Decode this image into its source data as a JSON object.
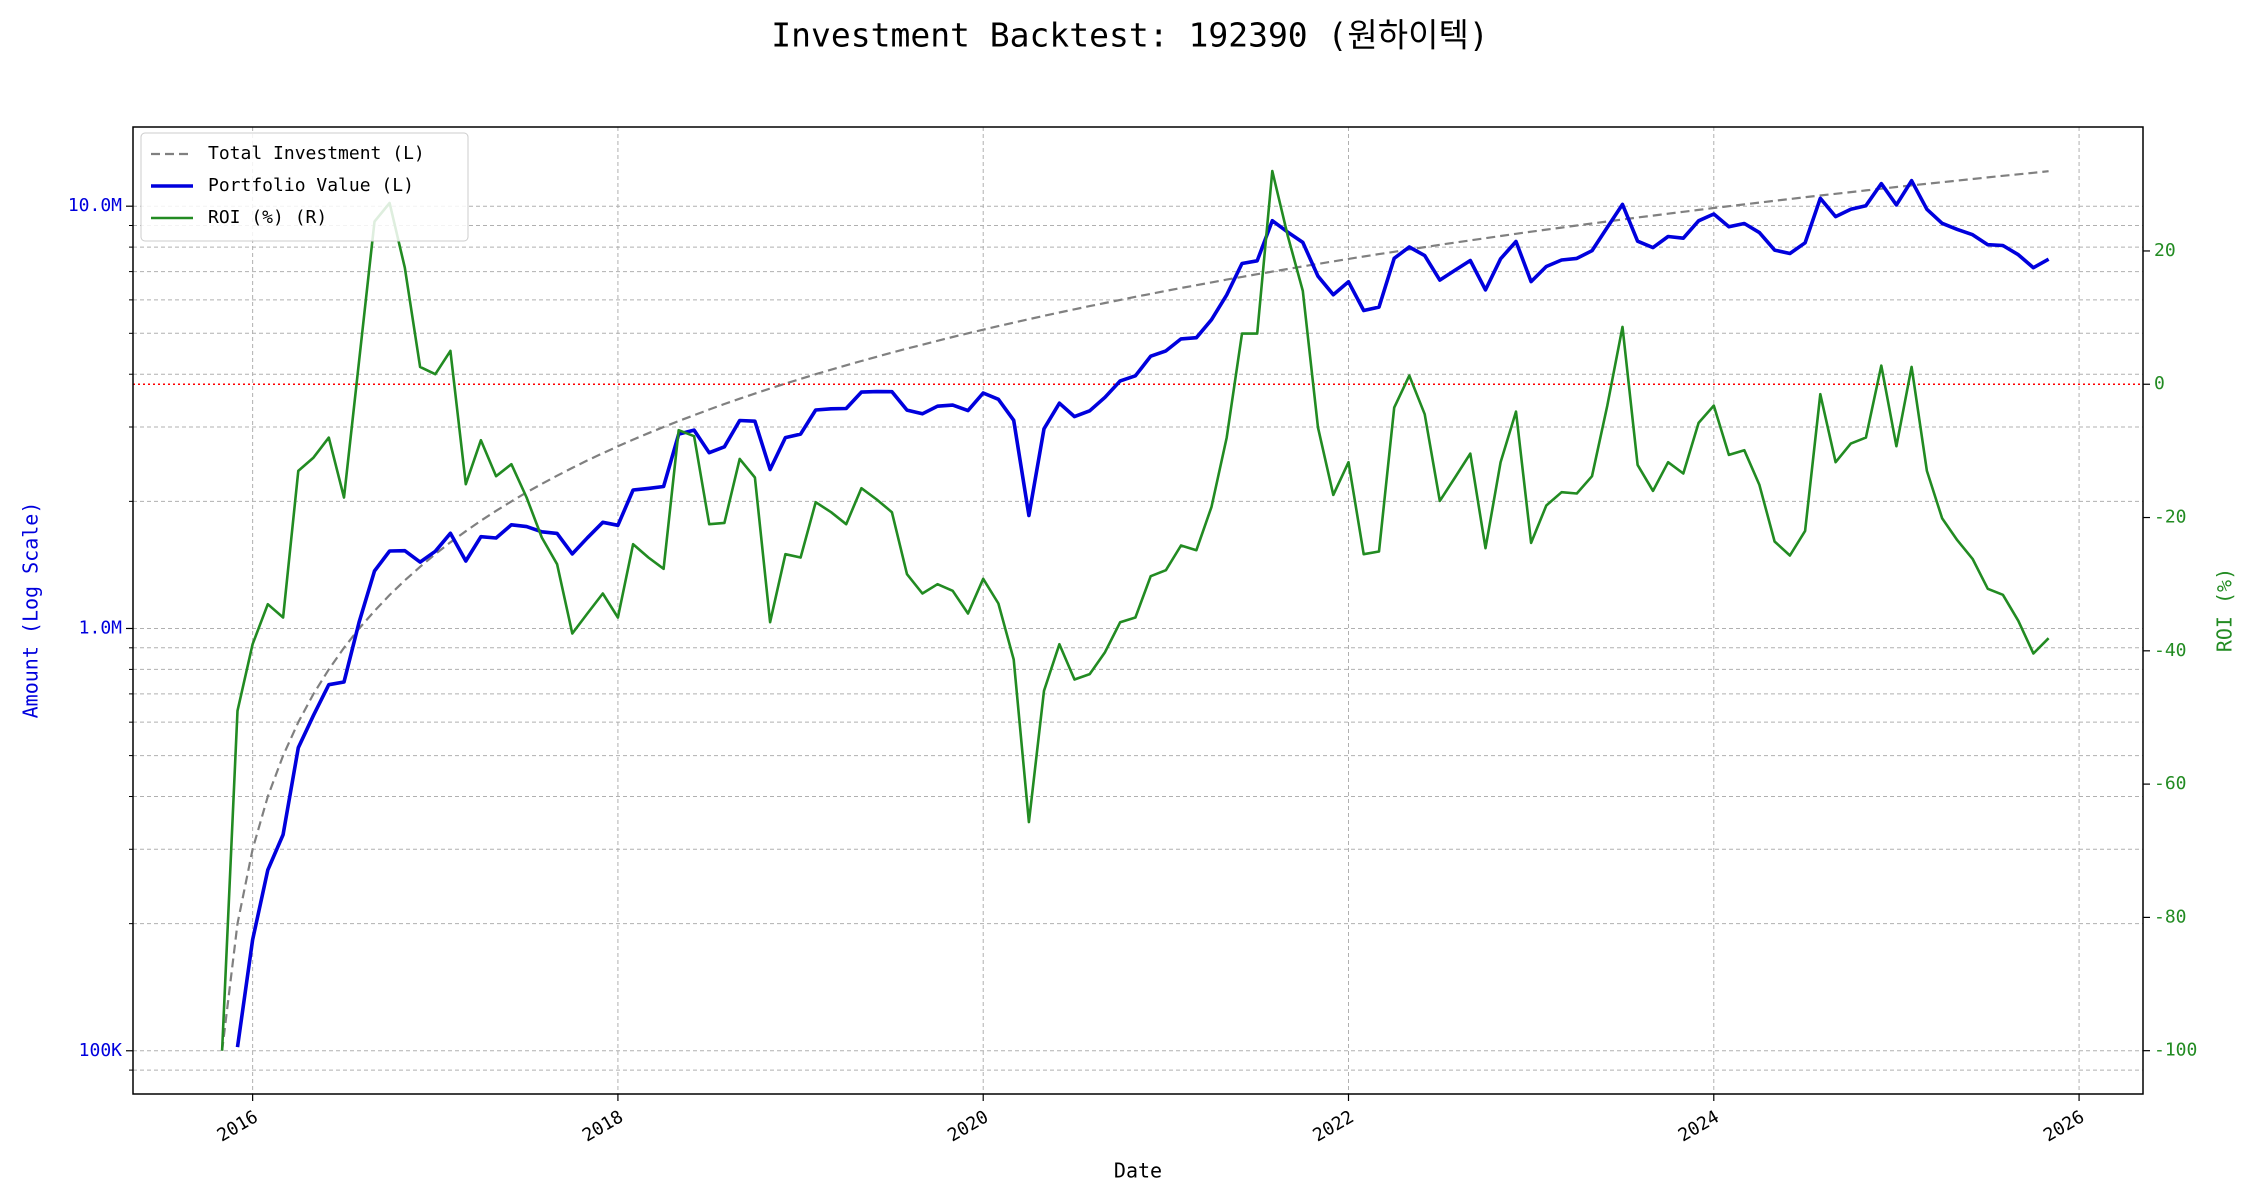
{
  "chart_data": {
    "type": "line",
    "title": "Investment Backtest: 192390 (원하이텍)",
    "xlabel": "Date",
    "ylabel": "Amount (Log Scale)",
    "y2label": "ROI (%)",
    "x": [
      2015.833,
      2015.917,
      2016,
      2016.083,
      2016.167,
      2016.25,
      2016.333,
      2016.417,
      2016.5,
      2016.583,
      2016.667,
      2016.75,
      2016.833,
      2016.917,
      2017,
      2017.083,
      2017.167,
      2017.25,
      2017.333,
      2017.417,
      2017.5,
      2017.583,
      2017.667,
      2017.75,
      2017.833,
      2017.917,
      2018,
      2018.083,
      2018.167,
      2018.25,
      2018.333,
      2018.417,
      2018.5,
      2018.583,
      2018.667,
      2018.75,
      2018.833,
      2018.917,
      2019,
      2019.083,
      2019.167,
      2019.25,
      2019.333,
      2019.417,
      2019.5,
      2019.583,
      2019.667,
      2019.75,
      2019.833,
      2019.917,
      2020,
      2020.083,
      2020.167,
      2020.25,
      2020.333,
      2020.417,
      2020.5,
      2020.583,
      2020.667,
      2020.75,
      2020.833,
      2020.917,
      2021,
      2021.083,
      2021.167,
      2021.25,
      2021.333,
      2021.417,
      2021.5,
      2021.583,
      2021.667,
      2021.75,
      2021.833,
      2021.917,
      2022,
      2022.083,
      2022.167,
      2022.25,
      2022.333,
      2022.417,
      2022.5,
      2022.583,
      2022.667,
      2022.75,
      2022.833,
      2022.917,
      2023,
      2023.083,
      2023.167,
      2023.25,
      2023.333,
      2023.417,
      2023.5,
      2023.583,
      2023.667,
      2023.75,
      2023.833,
      2023.917,
      2024,
      2024.083,
      2024.167,
      2024.25,
      2024.333,
      2024.417,
      2024.5,
      2024.583,
      2024.667,
      2024.75,
      2024.833,
      2024.917,
      2025,
      2025.083,
      2025.167,
      2025.25,
      2025.333,
      2025.417,
      2025.5,
      2025.583,
      2025.667,
      2025.75,
      2025.833
    ],
    "series": [
      {
        "name": "Total Investment (L)",
        "color": "#808080",
        "dash": true,
        "values": [
          100000,
          200000,
          300000,
          400000,
          500000,
          600000,
          700000,
          800000,
          900000,
          1000000,
          1100000,
          1200000,
          1300000,
          1400000,
          1500000,
          1600000,
          1700000,
          1800000,
          1900000,
          2000000,
          2100000,
          2200000,
          2300000,
          2400000,
          2500000,
          2600000,
          2700000,
          2800000,
          2900000,
          3000000,
          3100000,
          3200000,
          3300000,
          3400000,
          3500000,
          3600000,
          3700000,
          3800000,
          3900000,
          4000000,
          4100000,
          4200000,
          4300000,
          4400000,
          4500000,
          4600000,
          4700000,
          4800000,
          4900000,
          5000000,
          5100000,
          5200000,
          5300000,
          5400000,
          5500000,
          5600000,
          5700000,
          5800000,
          5900000,
          6000000,
          6100000,
          6200000,
          6300000,
          6400000,
          6500000,
          6600000,
          6700000,
          6800000,
          6900000,
          7000000,
          7100000,
          7200000,
          7300000,
          7400000,
          7500000,
          7600000,
          7700000,
          7800000,
          7900000,
          8000000,
          8100000,
          8200000,
          8300000,
          8400000,
          8500000,
          8600000,
          8700000,
          8800000,
          8900000,
          9000000,
          9100000,
          9200000,
          9300000,
          9400000,
          9500000,
          9600000,
          9700000,
          9800000,
          9900000,
          10000000,
          10100000,
          10200000,
          10300000,
          10400000,
          10500000,
          10600000,
          10700000,
          10800000,
          10900000,
          11000000,
          11100000,
          11200000,
          11300000,
          11400000,
          11500000,
          11600000,
          11700000,
          11800000,
          11900000,
          12000000,
          12100000
        ]
      },
      {
        "name": "Portfolio Value (L)",
        "color": "#0000dd",
        "values": [
          null,
          102000,
          183000,
          268000,
          325000,
          522000,
          623000,
          736000,
          747000,
          1035000,
          1368000,
          1526000,
          1528000,
          1436000,
          1523000,
          1680000,
          1445000,
          1649000,
          1638000,
          1760000,
          1743000,
          1694000,
          1679000,
          1502000,
          1640000,
          1784000,
          1755000,
          2128000,
          2146000,
          2169000,
          2886000,
          2950000,
          2607000,
          2693000,
          3108000,
          3096000,
          2379000,
          2831000,
          2886000,
          3292000,
          3313000,
          3318000,
          3629000,
          3639000,
          3636000,
          3289000,
          3224000,
          3360000,
          3381000,
          3280000,
          3611000,
          3489000,
          3111000,
          1852000,
          2970000,
          3416000,
          3175000,
          3277000,
          3528000,
          3858000,
          3965000,
          4414000,
          4542000,
          4851000,
          4882000,
          5386000,
          6164000,
          7317000,
          7424000,
          9240000,
          8683000,
          8208000,
          6826000,
          6172000,
          6623000,
          5662000,
          5767000,
          7527000,
          8003000,
          7640000,
          6683000,
          7052000,
          7437000,
          6334000,
          7506000,
          8247000,
          6629000,
          7198000,
          7458000,
          7524000,
          7844000,
          8906000,
          10100000,
          8263000,
          7980000,
          8477000,
          8400000,
          9232000,
          9583000,
          8940000,
          9100000,
          8660000,
          7869000,
          7727000,
          8190000,
          10441000,
          9448000,
          9839000,
          10028000,
          11308000,
          10068000,
          11491000,
          9831000,
          9109000,
          8809000,
          8561000,
          8108000,
          8071000,
          7676000,
          7152000,
          7490000
        ]
      },
      {
        "name": "ROI (%) (R)",
        "color": "#228b22",
        "axis": "y2",
        "values": [
          -100,
          -49,
          -39,
          -33,
          -35,
          -13,
          -11,
          -8,
          -17,
          3.5,
          24.4,
          27.2,
          17.5,
          2.6,
          1.5,
          5,
          -15,
          -8.4,
          -13.8,
          -12,
          -17,
          -23,
          -27,
          -37.4,
          -34.4,
          -31.4,
          -35,
          -24,
          -26,
          -27.7,
          -6.9,
          -7.8,
          -21,
          -20.8,
          -11.2,
          -14,
          -35.7,
          -25.5,
          -26,
          -17.7,
          -19.2,
          -21,
          -15.6,
          -17.3,
          -19.2,
          -28.5,
          -31.4,
          -30,
          -31,
          -34.4,
          -29.2,
          -32.9,
          -41.3,
          -65.7,
          -46,
          -39,
          -44.3,
          -43.5,
          -40.2,
          -35.7,
          -35,
          -28.8,
          -27.9,
          -24.2,
          -24.9,
          -18.4,
          -8,
          7.6,
          7.6,
          32,
          22.3,
          14,
          -6.5,
          -16.6,
          -11.7,
          -25.5,
          -25.1,
          -3.5,
          1.3,
          -4.5,
          -17.5,
          -14,
          -10.4,
          -24.6,
          -11.7,
          -4.1,
          -23.8,
          -18.2,
          -16.2,
          -16.4,
          -13.8,
          -3.2,
          8.6,
          -12.1,
          -16,
          -11.7,
          -13.4,
          -5.8,
          -3.2,
          -10.6,
          -9.9,
          -15.1,
          -23.6,
          -25.7,
          -22,
          -1.5,
          -11.7,
          -8.9,
          -8,
          2.8,
          -9.3,
          2.6,
          -13,
          -20.1,
          -23.4,
          -26.2,
          -30.7,
          -31.6,
          -35.5,
          -40.4,
          -38.1
        ]
      }
    ],
    "xlim": [
      2015.345,
      2026.35
    ],
    "xticks": [
      2016,
      2018,
      2020,
      2022,
      2024,
      2026
    ],
    "ylim": [
      79000,
      15400000
    ],
    "ylog": true,
    "yticks": [
      {
        "value": 100000,
        "label": "100K"
      },
      {
        "value": 1000000,
        "label": "1.0M"
      },
      {
        "value": 10000000,
        "label": "10.0M"
      }
    ],
    "yminorticks": [
      90000,
      200000,
      300000,
      400000,
      500000,
      600000,
      700000,
      800000,
      900000,
      2000000,
      3000000,
      4000000,
      5000000,
      6000000,
      7000000,
      8000000,
      9000000
    ],
    "y2lim": [
      -106.5,
      38.6
    ],
    "y2ticks": [
      -100,
      -80,
      -60,
      -40,
      -20,
      0,
      20
    ],
    "hline": {
      "value": 0,
      "axis": "y2",
      "color": "#ff0000"
    },
    "ylabel_color": "#0000dd",
    "y2label_color": "#228b22",
    "grid": true,
    "legend": "upper-left"
  }
}
